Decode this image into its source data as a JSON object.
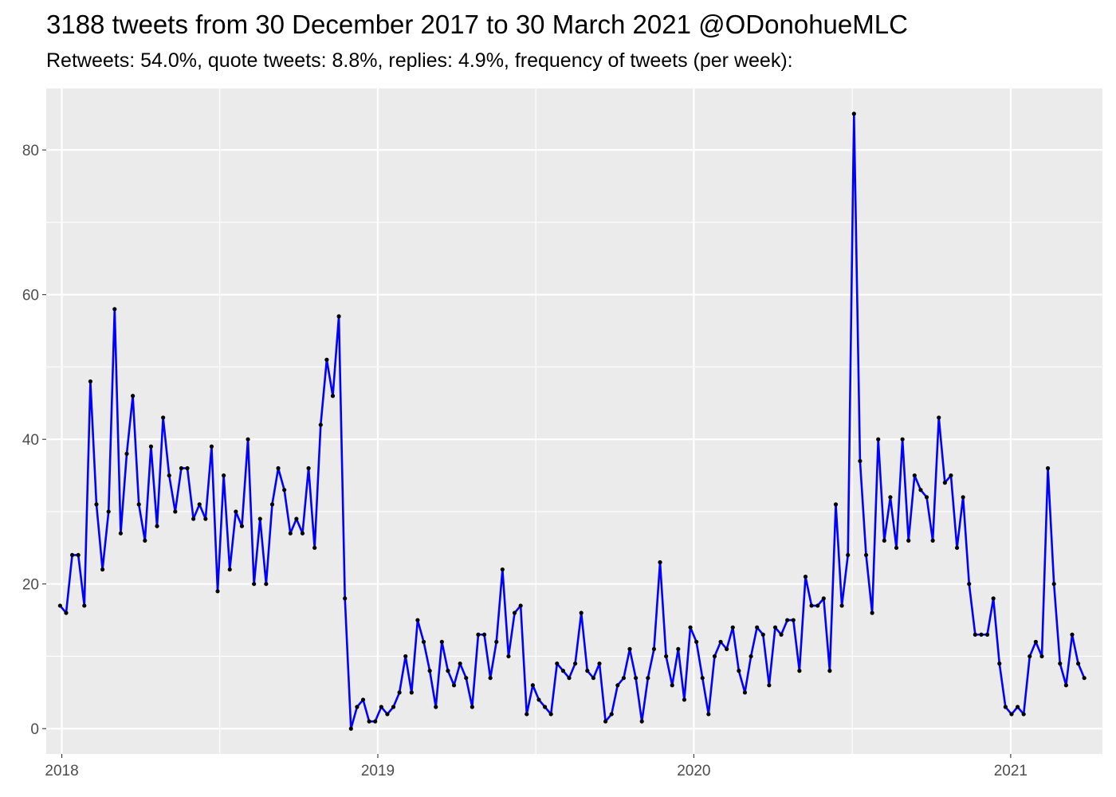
{
  "chart_data": {
    "type": "line",
    "title": "3188 tweets from 30 December 2017 to 30 March 2021 @ODonohueMLC",
    "subtitle": "Retweets: 54.0%, quote tweets: 8.8%, replies: 4.9%, frequency of tweets (per week):",
    "xlabel": "",
    "ylabel": "",
    "x_axis": {
      "type": "date",
      "range": [
        "2017-12-14",
        "2021-04-17"
      ],
      "ticks": [
        "2018-01-01",
        "2019-01-01",
        "2020-01-01",
        "2021-01-01"
      ],
      "tick_labels": [
        "2018",
        "2019",
        "2020",
        "2021"
      ]
    },
    "y_axis": {
      "range": [
        -3.5,
        88.5
      ],
      "ticks": [
        0,
        20,
        40,
        60,
        80
      ],
      "tick_labels": [
        "0",
        "20",
        "40",
        "60",
        "80"
      ]
    },
    "grid": true,
    "legend": "none",
    "colors": {
      "line": "#0000ff",
      "point": "#000000",
      "panel_background": "#ebebeb",
      "gridline": "#ffffff",
      "tick_label": "#4d4d4d"
    },
    "series": [
      {
        "start_date": "2017-12-30",
        "step_days": 7,
        "values": [
          17,
          16,
          24,
          24,
          17,
          48,
          31,
          22,
          30,
          58,
          27,
          38,
          46,
          31,
          26,
          39,
          28,
          43,
          35,
          30,
          36,
          36,
          29,
          31,
          29,
          39,
          19,
          35,
          22,
          30,
          28,
          40,
          20,
          29,
          20,
          31,
          36,
          33,
          27,
          29,
          27,
          36,
          25,
          42,
          51,
          46,
          57,
          18,
          0,
          3,
          4,
          1,
          1,
          3,
          2,
          3,
          5,
          10,
          5,
          15,
          12,
          8,
          3,
          12,
          8,
          6,
          9,
          7,
          3,
          13,
          13,
          7,
          12,
          22,
          10,
          16,
          17,
          2,
          6,
          4,
          3,
          2,
          9,
          8,
          7,
          9,
          16,
          8,
          7,
          9,
          1,
          2,
          6,
          7,
          11,
          7,
          1,
          7,
          11,
          23,
          10,
          6,
          11,
          4,
          14,
          12,
          7,
          2,
          10,
          12,
          11,
          14,
          8,
          5,
          10,
          14,
          13,
          6,
          14,
          13,
          15,
          15,
          8,
          21,
          17,
          17,
          18,
          8,
          31,
          17,
          24,
          85,
          37,
          24,
          16,
          40,
          26,
          32,
          25,
          40,
          26,
          35,
          33,
          32,
          26,
          43,
          34,
          35,
          25,
          32,
          20,
          13,
          13,
          13,
          18,
          9,
          3,
          2,
          3,
          2,
          10,
          12,
          10,
          36,
          20,
          9,
          6,
          13,
          9,
          7
        ]
      }
    ]
  }
}
